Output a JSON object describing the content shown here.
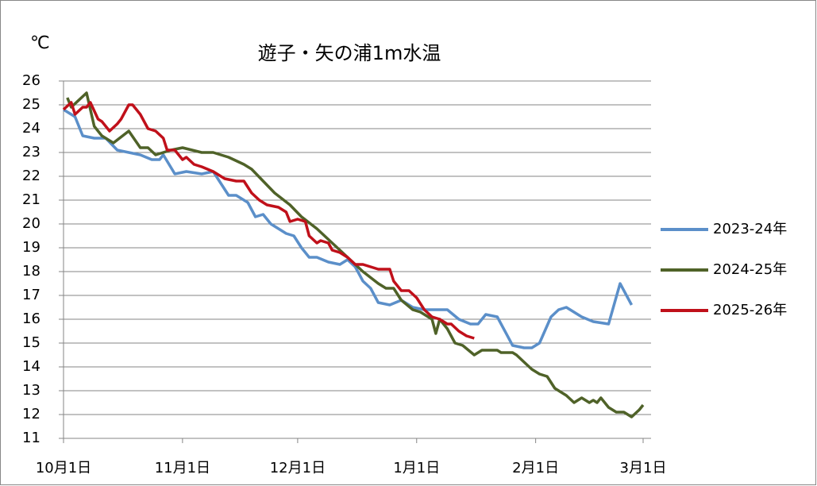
{
  "chart_data": {
    "type": "line",
    "title": "遊子・矢の浦1m水温",
    "y_label": "℃",
    "xlim": [
      0,
      151
    ],
    "xticks": [
      {
        "value": 0,
        "label": "10月1日"
      },
      {
        "value": 31,
        "label": "11月1日"
      },
      {
        "value": 61,
        "label": "12月1日"
      },
      {
        "value": 92,
        "label": "1月1日"
      },
      {
        "value": 123,
        "label": "2月1日"
      },
      {
        "value": 151,
        "label": "3月1日"
      }
    ],
    "ylim": [
      11,
      26
    ],
    "yticks": [
      11,
      12,
      13,
      14,
      15,
      16,
      17,
      18,
      19,
      20,
      21,
      22,
      23,
      24,
      25,
      26
    ],
    "grid": true,
    "legend": "right",
    "series": [
      {
        "name": "2023-24年",
        "color": "#5b8fc9",
        "x": [
          0,
          3,
          5,
          8,
          11,
          14,
          20,
          23,
          25,
          26,
          29,
          32,
          36,
          39,
          43,
          45,
          48,
          50,
          52,
          54,
          58,
          60,
          62,
          64,
          66,
          69,
          72,
          74,
          76,
          78,
          80,
          82,
          85,
          88,
          91,
          94,
          97,
          100,
          103,
          106,
          108,
          110,
          113,
          117,
          120,
          122,
          124,
          127,
          129,
          131,
          135,
          138,
          142,
          145,
          148
        ],
        "values": [
          24.8,
          24.5,
          23.7,
          23.6,
          23.6,
          23.1,
          22.9,
          22.7,
          22.7,
          22.9,
          22.1,
          22.2,
          22.1,
          22.2,
          21.2,
          21.2,
          20.9,
          20.3,
          20.4,
          20.0,
          19.6,
          19.5,
          19.0,
          18.6,
          18.6,
          18.4,
          18.3,
          18.5,
          18.2,
          17.6,
          17.3,
          16.7,
          16.6,
          16.8,
          16.5,
          16.4,
          16.4,
          16.4,
          16.0,
          15.8,
          15.8,
          16.2,
          16.1,
          14.9,
          14.8,
          14.8,
          15.0,
          16.1,
          16.4,
          16.5,
          16.1,
          15.9,
          15.8,
          17.5,
          16.6
        ]
      },
      {
        "name": "2024-25年",
        "color": "#4f6228",
        "x": [
          1,
          2,
          6,
          8,
          10,
          13,
          17,
          20,
          22,
          24,
          28,
          31,
          36,
          39,
          43,
          47,
          49,
          52,
          55,
          59,
          62,
          66,
          70,
          72,
          74,
          78,
          82,
          84,
          86,
          88,
          91,
          93,
          96,
          97,
          98,
          100,
          102,
          104,
          107,
          109,
          113,
          114,
          117,
          118,
          120,
          122,
          124,
          126,
          128,
          131,
          133,
          135,
          137,
          138,
          139,
          140,
          142,
          144,
          146,
          148,
          150,
          151
        ],
        "values": [
          25.3,
          24.9,
          25.5,
          24.1,
          23.7,
          23.4,
          23.9,
          23.2,
          23.2,
          22.9,
          23.1,
          23.2,
          23.0,
          23.0,
          22.8,
          22.5,
          22.3,
          21.8,
          21.3,
          20.8,
          20.3,
          19.8,
          19.2,
          18.9,
          18.6,
          18.0,
          17.5,
          17.3,
          17.3,
          16.8,
          16.4,
          16.3,
          16.0,
          15.4,
          16.0,
          15.6,
          15.0,
          14.9,
          14.5,
          14.7,
          14.7,
          14.6,
          14.6,
          14.5,
          14.2,
          13.9,
          13.7,
          13.6,
          13.1,
          12.8,
          12.5,
          12.7,
          12.5,
          12.6,
          12.5,
          12.7,
          12.3,
          12.1,
          12.1,
          11.9,
          12.2,
          12.4
        ]
      },
      {
        "name": "2025-26年",
        "color": "#c0101a",
        "x": [
          0,
          2,
          3,
          5,
          6,
          7,
          9,
          10,
          12,
          14,
          15,
          17,
          18,
          20,
          22,
          24,
          26,
          27,
          29,
          31,
          32,
          34,
          36,
          39,
          42,
          45,
          47,
          49,
          51,
          53,
          56,
          58,
          59,
          61,
          63,
          64,
          66,
          67,
          69,
          70,
          72,
          74,
          76,
          78,
          80,
          82,
          85,
          86,
          88,
          90,
          92,
          94,
          96,
          98,
          100,
          101,
          103,
          105,
          107
        ],
        "values": [
          24.8,
          25.1,
          24.6,
          24.9,
          24.9,
          25.1,
          24.4,
          24.3,
          23.9,
          24.2,
          24.4,
          25.0,
          25.0,
          24.6,
          24.0,
          23.9,
          23.6,
          23.1,
          23.1,
          22.7,
          22.8,
          22.5,
          22.4,
          22.2,
          21.9,
          21.8,
          21.8,
          21.3,
          21.0,
          20.8,
          20.7,
          20.5,
          20.1,
          20.2,
          20.1,
          19.5,
          19.2,
          19.3,
          19.2,
          18.9,
          18.8,
          18.6,
          18.3,
          18.3,
          18.2,
          18.1,
          18.1,
          17.6,
          17.2,
          17.2,
          16.9,
          16.4,
          16.1,
          16.0,
          15.8,
          15.8,
          15.5,
          15.3,
          15.2
        ]
      }
    ]
  }
}
